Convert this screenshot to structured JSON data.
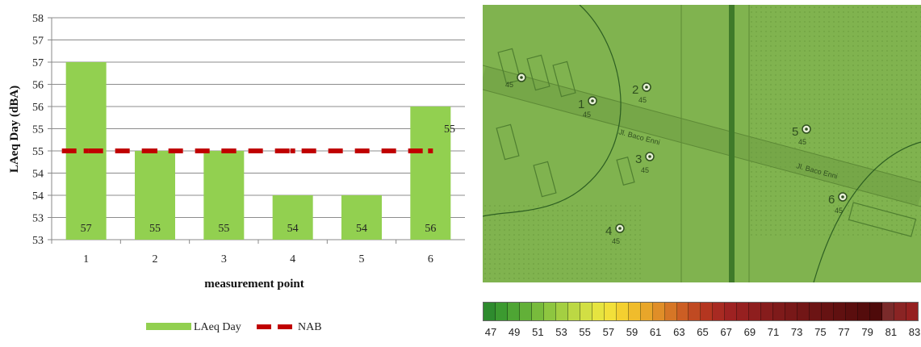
{
  "chart_data": {
    "type": "bar",
    "ylabel": "LAeq Day (dBA)",
    "xlabel": "measurement point",
    "categories": [
      "1",
      "2",
      "3",
      "4",
      "5",
      "6"
    ],
    "series": [
      {
        "name": "LAeq Day",
        "type": "bar",
        "values": [
          57,
          55,
          55,
          54,
          54,
          56
        ],
        "color": "#92d050"
      },
      {
        "name": "NAB",
        "type": "line",
        "values": [
          55,
          55,
          55,
          55,
          55,
          55
        ],
        "color": "#c00000",
        "line_style": "dashed"
      }
    ],
    "data_labels": [
      "57",
      "55",
      "55",
      "54",
      "54",
      "56"
    ],
    "nab_label": "55",
    "ylim": [
      53,
      58
    ],
    "yticks": [
      "53",
      "53",
      "54",
      "54",
      "55",
      "55",
      "56",
      "56",
      "57",
      "57",
      "58"
    ],
    "grid": true,
    "legend_position": "bottom"
  },
  "map": {
    "background_color": "#7fb24e",
    "street_labels": [
      "Jl. Baco Enni",
      "Jl. Baco Enni"
    ],
    "points": [
      {
        "label": "1",
        "value": "45"
      },
      {
        "label": "2",
        "value": "45"
      },
      {
        "label": "3",
        "value": "45"
      },
      {
        "label": "4",
        "value": "45"
      },
      {
        "label": "5",
        "value": "45"
      },
      {
        "label": "6",
        "value": "45"
      },
      {
        "label": "",
        "value": "45"
      }
    ]
  },
  "color_scale": {
    "labels": [
      "47",
      "49",
      "51",
      "53",
      "55",
      "57",
      "59",
      "61",
      "63",
      "65",
      "67",
      "69",
      "71",
      "73",
      "75",
      "77",
      "79",
      "81",
      "83"
    ],
    "colors": [
      "#2e8b2e",
      "#3c9a30",
      "#4ea534",
      "#62b038",
      "#78bb3c",
      "#8ec640",
      "#a4cf42",
      "#bcd844",
      "#d2df44",
      "#e6e440",
      "#f2e03a",
      "#f4d030",
      "#f0bc2c",
      "#e8a62a",
      "#e08e28",
      "#d67626",
      "#cc5e24",
      "#c04a22",
      "#b43620",
      "#a82a22",
      "#9e2222",
      "#962020",
      "#8e1e1e",
      "#861c1c",
      "#7e1a1a",
      "#781818",
      "#721616",
      "#6c1414",
      "#661212",
      "#601010",
      "#5a0e0e",
      "#540c0c",
      "#4e0a0a",
      "#7a2a2a",
      "#8a2424",
      "#952020"
    ]
  }
}
